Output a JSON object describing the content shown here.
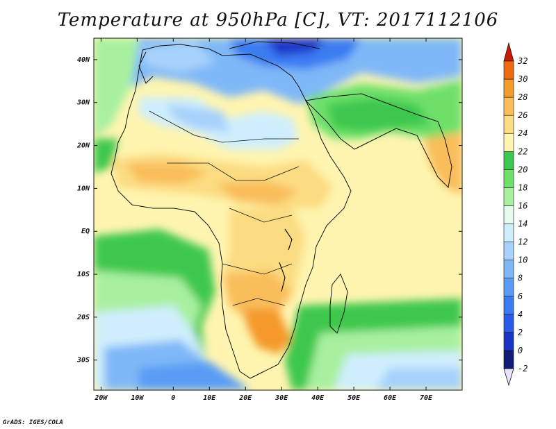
{
  "title": "Temperature at 950hPa [C], VT: 2017112106",
  "credit": "GrADS: IGES/COLA",
  "map": {
    "lon_range": [
      -22,
      80
    ],
    "lat_range": [
      -37,
      45
    ],
    "lat_ticks": [
      {
        "value": 40,
        "label": "40N"
      },
      {
        "value": 30,
        "label": "30N"
      },
      {
        "value": 20,
        "label": "20N"
      },
      {
        "value": 10,
        "label": "10N"
      },
      {
        "value": 0,
        "label": "EQ"
      },
      {
        "value": -10,
        "label": "10S"
      },
      {
        "value": -20,
        "label": "20S"
      },
      {
        "value": -30,
        "label": "30S"
      }
    ],
    "lon_ticks": [
      {
        "value": -20,
        "label": "20W"
      },
      {
        "value": -10,
        "label": "10W"
      },
      {
        "value": 0,
        "label": "0"
      },
      {
        "value": 10,
        "label": "10E"
      },
      {
        "value": 20,
        "label": "20E"
      },
      {
        "value": 30,
        "label": "30E"
      },
      {
        "value": 40,
        "label": "40E"
      },
      {
        "value": 50,
        "label": "50E"
      },
      {
        "value": 60,
        "label": "60E"
      },
      {
        "value": 70,
        "label": "70E"
      }
    ]
  },
  "colorbar": {
    "levels": [
      {
        "value": -2,
        "label": "-2",
        "color": "#101a78"
      },
      {
        "value": 0,
        "label": "0",
        "color": "#1b34c8"
      },
      {
        "value": 2,
        "label": "2",
        "color": "#2a5ae8"
      },
      {
        "value": 4,
        "label": "4",
        "color": "#3b7bf2"
      },
      {
        "value": 6,
        "label": "6",
        "color": "#5a9cf5"
      },
      {
        "value": 8,
        "label": "8",
        "color": "#7fb8f8"
      },
      {
        "value": 10,
        "label": "10",
        "color": "#a7d2fb"
      },
      {
        "value": 12,
        "label": "12",
        "color": "#cfeefd"
      },
      {
        "value": 14,
        "label": "14",
        "color": "#e6fbef"
      },
      {
        "value": 16,
        "label": "16",
        "color": "#a8f0a0"
      },
      {
        "value": 18,
        "label": "18",
        "color": "#6ee06a"
      },
      {
        "value": 20,
        "label": "20",
        "color": "#3cc84e"
      },
      {
        "value": 22,
        "label": "22",
        "color": "#fff5b0"
      },
      {
        "value": 24,
        "label": "24",
        "color": "#fcdc82"
      },
      {
        "value": 26,
        "label": "26",
        "color": "#f9bd5a"
      },
      {
        "value": 28,
        "label": "28",
        "color": "#f59a2c"
      },
      {
        "value": 30,
        "label": "30",
        "color": "#ee6a10"
      },
      {
        "value": 32,
        "label": "32",
        "color": "#d62e08"
      }
    ],
    "below_color": "#e8e3fa",
    "above_color": "#c81a06"
  }
}
